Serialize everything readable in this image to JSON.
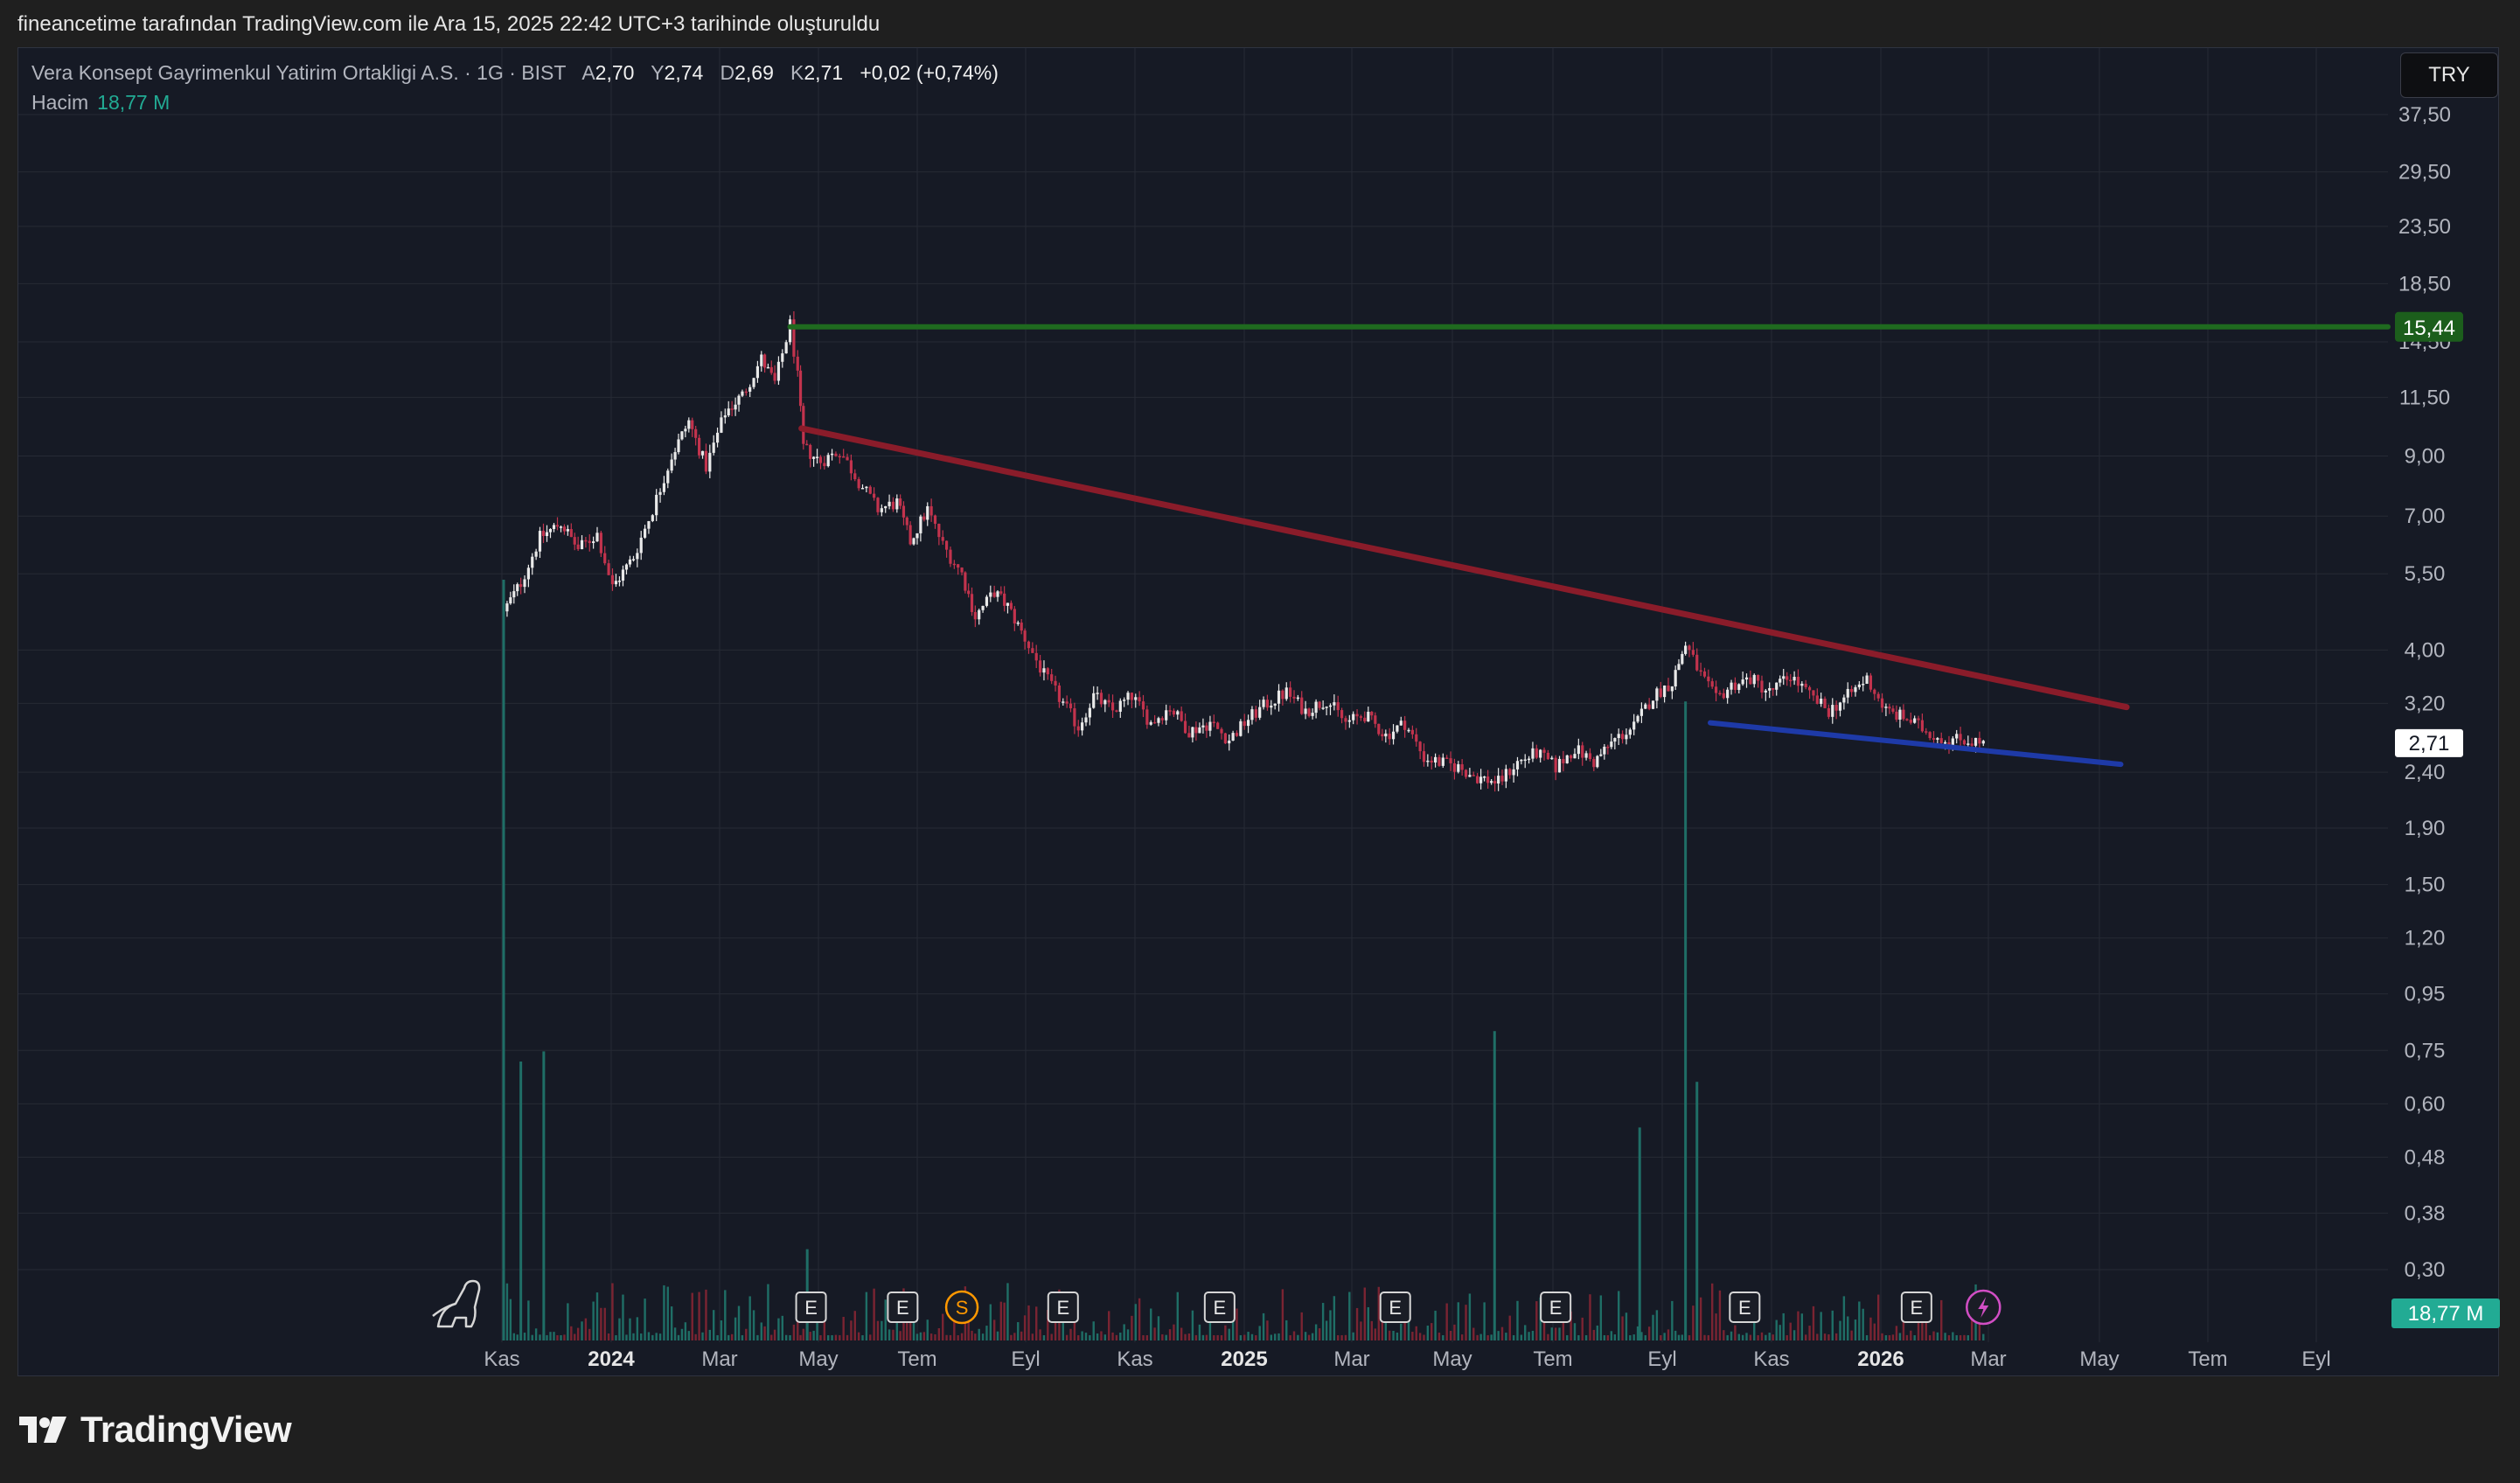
{
  "header": {
    "text": "fineancetime tarafından TradingView.com ile Ara 15, 2025 22:42 UTC+3 tarihinde oluşturuldu"
  },
  "legend": {
    "symbol": "Vera Konsept Gayrimenkul Yatirim Ortakligi A.S. · 1G · BIST",
    "open_label": "A",
    "open": "2,70",
    "high_label": "Y",
    "high": "2,74",
    "low_label": "D",
    "low": "2,69",
    "close_label": "K",
    "close": "2,71",
    "change": "+0,02 (+0,74%)",
    "volume_label": "Hacim",
    "volume": "18,77 M"
  },
  "toolbar": {
    "currency": "TRY"
  },
  "footer": {
    "brand": "TradingView"
  },
  "colors": {
    "background": "#161a25",
    "grid": "#262a35",
    "candle_up": "#e9e9e9",
    "candle_down": "#c2334d",
    "volume_up": "#1f6e66",
    "volume_down": "#7a2432",
    "resistance": "#1f6a1f",
    "trendline_down": "#8a1c2a",
    "trendline_support": "#1e3aa8",
    "volume_badge": "#22ab94",
    "event_dividend": "#ff9800",
    "event_split": "#d14ec4"
  },
  "chart_data": {
    "type": "candlestick",
    "title": "Vera Konsept Gayrimenkul Yatirim Ortakligi A.S. · 1G · BIST",
    "y_scale": "log",
    "y_ticks": [
      "37,50",
      "29,50",
      "23,50",
      "18,50",
      "14,50",
      "11,50",
      "9,00",
      "7,00",
      "5,50",
      "4,00",
      "3,20",
      "2,40",
      "1,90",
      "1,50",
      "1,20",
      "0,95",
      "0,75",
      "0,60",
      "0,48",
      "0,38",
      "0,30"
    ],
    "x_ticks": [
      {
        "label": "Kas",
        "bold": false
      },
      {
        "label": "2024",
        "bold": true
      },
      {
        "label": "Mar",
        "bold": false
      },
      {
        "label": "May",
        "bold": false
      },
      {
        "label": "Tem",
        "bold": false
      },
      {
        "label": "Eyl",
        "bold": false
      },
      {
        "label": "Kas",
        "bold": false
      },
      {
        "label": "2025",
        "bold": true
      },
      {
        "label": "Mar",
        "bold": false
      },
      {
        "label": "May",
        "bold": false
      },
      {
        "label": "Tem",
        "bold": false
      },
      {
        "label": "Eyl",
        "bold": false
      },
      {
        "label": "Kas",
        "bold": false
      },
      {
        "label": "2026",
        "bold": true
      },
      {
        "label": "Mar",
        "bold": false
      },
      {
        "label": "May",
        "bold": false
      },
      {
        "label": "Tem",
        "bold": false
      },
      {
        "label": "Eyl",
        "bold": false
      }
    ],
    "price_path": [
      [
        "2023-11-01",
        4.7
      ],
      [
        "2023-11-10",
        5.3
      ],
      [
        "2023-11-20",
        6.4
      ],
      [
        "2023-12-01",
        6.8
      ],
      [
        "2023-12-10",
        6.1
      ],
      [
        "2023-12-20",
        6.5
      ],
      [
        "2023-12-28",
        5.2
      ],
      [
        "2024-01-08",
        5.9
      ],
      [
        "2024-01-18",
        7.2
      ],
      [
        "2024-01-28",
        9.0
      ],
      [
        "2024-02-06",
        10.4
      ],
      [
        "2024-02-15",
        8.6
      ],
      [
        "2024-02-25",
        10.8
      ],
      [
        "2024-03-05",
        11.6
      ],
      [
        "2024-03-15",
        13.5
      ],
      [
        "2024-03-22",
        12.2
      ],
      [
        "2024-03-30",
        15.6
      ],
      [
        "2024-04-03",
        12.5
      ],
      [
        "2024-04-06",
        9.3
      ],
      [
        "2024-04-15",
        8.8
      ],
      [
        "2024-04-25",
        9.2
      ],
      [
        "2024-05-05",
        8.1
      ],
      [
        "2024-05-15",
        7.2
      ],
      [
        "2024-05-25",
        7.4
      ],
      [
        "2024-06-01",
        6.3
      ],
      [
        "2024-06-10",
        7.2
      ],
      [
        "2024-06-18",
        6.2
      ],
      [
        "2024-06-28",
        5.5
      ],
      [
        "2024-07-05",
        4.6
      ],
      [
        "2024-07-15",
        5.1
      ],
      [
        "2024-07-22",
        4.8
      ],
      [
        "2024-07-31",
        4.2
      ],
      [
        "2024-08-10",
        3.6
      ],
      [
        "2024-08-20",
        3.2
      ],
      [
        "2024-08-28",
        2.9
      ],
      [
        "2024-09-05",
        3.3
      ],
      [
        "2024-09-15",
        3.1
      ],
      [
        "2024-09-25",
        3.3
      ],
      [
        "2024-10-05",
        2.95
      ],
      [
        "2024-10-15",
        3.15
      ],
      [
        "2024-10-25",
        2.85
      ],
      [
        "2024-11-05",
        2.95
      ],
      [
        "2024-11-15",
        2.75
      ],
      [
        "2024-11-25",
        3.0
      ],
      [
        "2024-12-05",
        3.2
      ],
      [
        "2024-12-15",
        3.35
      ],
      [
        "2024-12-25",
        3.1
      ],
      [
        "2025-01-05",
        3.25
      ],
      [
        "2025-01-15",
        2.95
      ],
      [
        "2025-01-25",
        3.05
      ],
      [
        "2025-02-05",
        2.8
      ],
      [
        "2025-02-15",
        2.95
      ],
      [
        "2025-02-25",
        2.55
      ],
      [
        "2025-03-05",
        2.5
      ],
      [
        "2025-03-15",
        2.45
      ],
      [
        "2025-03-25",
        2.35
      ],
      [
        "2025-04-05",
        2.3
      ],
      [
        "2025-04-15",
        2.5
      ],
      [
        "2025-04-25",
        2.6
      ],
      [
        "2025-05-05",
        2.45
      ],
      [
        "2025-05-15",
        2.65
      ],
      [
        "2025-05-25",
        2.5
      ],
      [
        "2025-06-05",
        2.75
      ],
      [
        "2025-06-15",
        2.9
      ],
      [
        "2025-06-25",
        3.3
      ],
      [
        "2025-07-05",
        3.5
      ],
      [
        "2025-07-12",
        4.1
      ],
      [
        "2025-07-20",
        3.6
      ],
      [
        "2025-07-28",
        3.25
      ],
      [
        "2025-08-05",
        3.45
      ],
      [
        "2025-08-15",
        3.55
      ],
      [
        "2025-08-25",
        3.35
      ],
      [
        "2025-09-05",
        3.6
      ],
      [
        "2025-09-15",
        3.3
      ],
      [
        "2025-09-25",
        3.1
      ],
      [
        "2025-10-05",
        3.3
      ],
      [
        "2025-10-15",
        3.55
      ],
      [
        "2025-10-25",
        3.1
      ],
      [
        "2025-11-05",
        3.0
      ],
      [
        "2025-11-15",
        2.85
      ],
      [
        "2025-11-25",
        2.75
      ],
      [
        "2025-12-05",
        2.75
      ],
      [
        "2025-12-15",
        2.71
      ]
    ],
    "volume_spikes_m": [
      {
        "date": "2023-11-01",
        "value": 150
      },
      {
        "date": "2023-11-10",
        "value": 55
      },
      {
        "date": "2023-11-22",
        "value": 57
      },
      {
        "date": "2024-04-08",
        "value": 18
      },
      {
        "date": "2025-04-03",
        "value": 61
      },
      {
        "date": "2025-07-12",
        "value": 126
      },
      {
        "date": "2025-07-18",
        "value": 51
      },
      {
        "date": "2025-06-18",
        "value": 42
      }
    ],
    "lines": [
      {
        "name": "resistance",
        "from": [
          "2024-03-30",
          15.44
        ],
        "to": [
          "2026-12-31",
          15.44
        ]
      },
      {
        "name": "falling trendline",
        "from": [
          "2024-04-05",
          10.1
        ],
        "to": [
          "2026-02-28",
          3.15
        ]
      },
      {
        "name": "support trendline",
        "from": [
          "2025-07-25",
          2.95
        ],
        "to": [
          "2026-02-25",
          2.48
        ]
      }
    ],
    "events": [
      {
        "type": "E",
        "date": "2024-04-10"
      },
      {
        "type": "E",
        "date": "2024-05-28"
      },
      {
        "type": "S",
        "date": "2024-06-28"
      },
      {
        "type": "E",
        "date": "2024-08-20"
      },
      {
        "type": "E",
        "date": "2024-11-10"
      },
      {
        "type": "E",
        "date": "2025-02-10"
      },
      {
        "type": "E",
        "date": "2025-05-05"
      },
      {
        "type": "E",
        "date": "2025-08-12"
      },
      {
        "type": "E",
        "date": "2025-11-10"
      },
      {
        "type": "split",
        "date": "2025-12-15"
      }
    ],
    "price_labels": [
      {
        "value": "15,44",
        "style": "resistance"
      },
      {
        "value": "2,71",
        "style": "last"
      }
    ],
    "volume_label": "18,77 M",
    "grid": true
  }
}
